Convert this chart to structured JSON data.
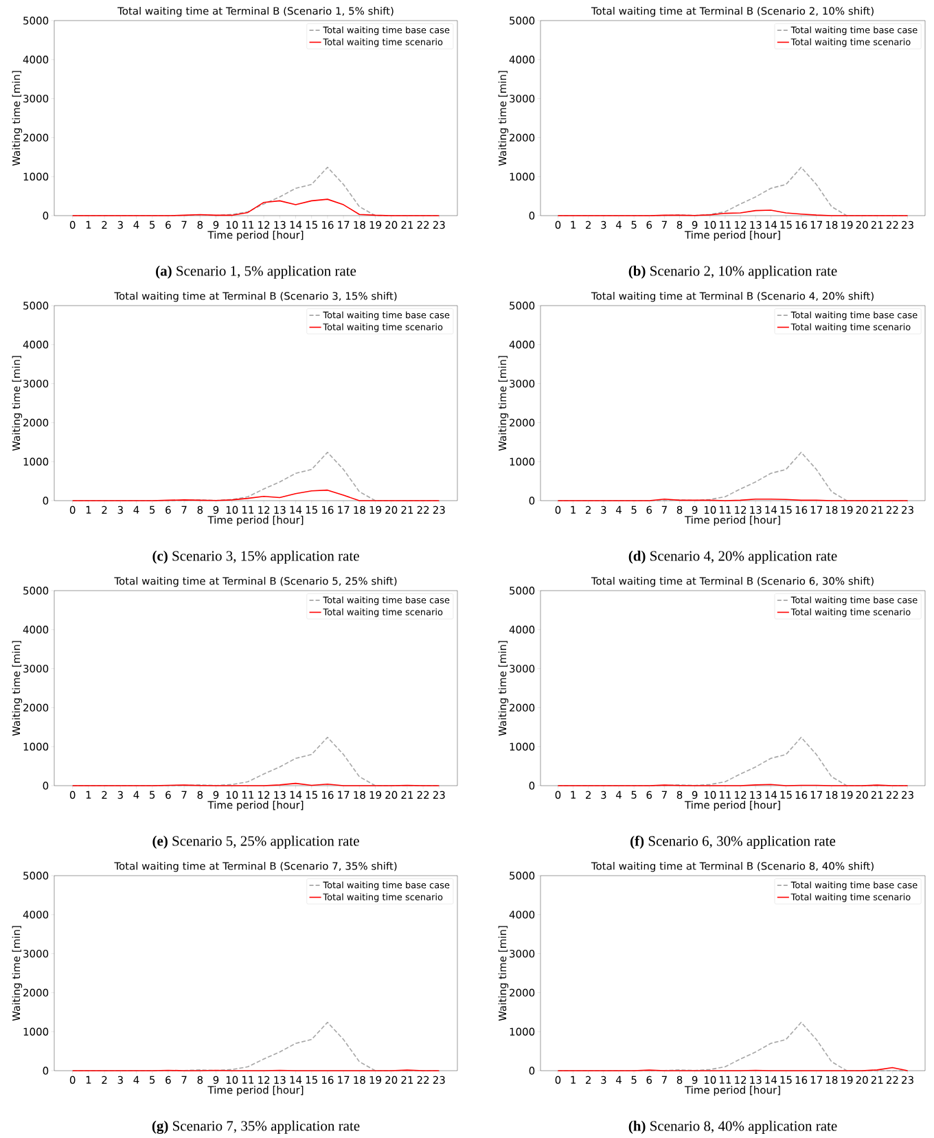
{
  "chart_data": [
    {
      "type": "line",
      "title": "Total waiting time at Terminal B (Scenario 1, 5% shift)",
      "xlabel": "Time period [hour]",
      "ylabel": "Waiting time [min]",
      "annotations": [
        "**(a)** Scenario 1, 5% application rate"
      ],
      "categories": [
        "0",
        "1",
        "2",
        "3",
        "4",
        "5",
        "6",
        "7",
        "8",
        "9",
        "10",
        "11",
        "12",
        "13",
        "14",
        "15",
        "16",
        "17",
        "18",
        "19",
        "20",
        "21",
        "22",
        "23"
      ],
      "ylim": [
        0,
        5000
      ],
      "yticks": [
        0,
        1000,
        2000,
        3000,
        4000,
        5000
      ],
      "legend": "top right",
      "series": [
        {
          "name": "Total waiting time base case",
          "color": "#a6a6a6",
          "line_style": "dashed",
          "values": [
            0,
            0,
            0,
            0,
            0,
            0,
            0,
            5,
            20,
            5,
            30,
            100,
            300,
            480,
            700,
            800,
            1240,
            800,
            230,
            0,
            0,
            0,
            0,
            0
          ]
        },
        {
          "name": "Total waiting time scenario",
          "color": "#ff0000",
          "line_style": "solid",
          "values": [
            0,
            0,
            0,
            0,
            0,
            0,
            0,
            10,
            25,
            10,
            10,
            80,
            340,
            380,
            280,
            380,
            420,
            280,
            30,
            10,
            0,
            0,
            0,
            0
          ]
        }
      ]
    },
    {
      "type": "line",
      "title": "Total waiting time at Terminal B (Scenario 2, 10% shift)",
      "xlabel": "Time period [hour]",
      "ylabel": "Waiting time [min]",
      "annotations": [
        "**(b)** Scenario 2, 10% application rate"
      ],
      "categories": [
        "0",
        "1",
        "2",
        "3",
        "4",
        "5",
        "6",
        "7",
        "8",
        "9",
        "10",
        "11",
        "12",
        "13",
        "14",
        "15",
        "16",
        "17",
        "18",
        "19",
        "20",
        "21",
        "22",
        "23"
      ],
      "ylim": [
        0,
        5000
      ],
      "yticks": [
        0,
        1000,
        2000,
        3000,
        4000,
        5000
      ],
      "legend": "top right",
      "series": [
        {
          "name": "Total waiting time base case",
          "color": "#a6a6a6",
          "line_style": "dashed",
          "values": [
            0,
            0,
            0,
            0,
            0,
            0,
            0,
            5,
            20,
            5,
            30,
            100,
            300,
            480,
            700,
            800,
            1240,
            800,
            230,
            0,
            0,
            0,
            0,
            0
          ]
        },
        {
          "name": "Total waiting time scenario",
          "color": "#ff0000",
          "line_style": "solid",
          "values": [
            0,
            0,
            0,
            0,
            0,
            0,
            0,
            10,
            10,
            5,
            20,
            60,
            70,
            130,
            140,
            70,
            40,
            15,
            0,
            0,
            0,
            0,
            0,
            0
          ]
        }
      ]
    },
    {
      "type": "line",
      "title": "Total waiting time at Terminal B (Scenario 3, 15% shift)",
      "xlabel": "Time period [hour]",
      "ylabel": "Waiting time [min]",
      "annotations": [
        "**(c)** Scenario 3, 15% application rate"
      ],
      "categories": [
        "0",
        "1",
        "2",
        "3",
        "4",
        "5",
        "6",
        "7",
        "8",
        "9",
        "10",
        "11",
        "12",
        "13",
        "14",
        "15",
        "16",
        "17",
        "18",
        "19",
        "20",
        "21",
        "22",
        "23"
      ],
      "ylim": [
        0,
        5000
      ],
      "yticks": [
        0,
        1000,
        2000,
        3000,
        4000,
        5000
      ],
      "legend": "top right",
      "series": [
        {
          "name": "Total waiting time base case",
          "color": "#a6a6a6",
          "line_style": "dashed",
          "values": [
            0,
            0,
            0,
            0,
            0,
            0,
            0,
            5,
            20,
            5,
            30,
            100,
            300,
            480,
            700,
            800,
            1240,
            800,
            230,
            0,
            0,
            0,
            0,
            0
          ]
        },
        {
          "name": "Total waiting time scenario",
          "color": "#ff0000",
          "line_style": "solid",
          "values": [
            0,
            0,
            0,
            0,
            0,
            0,
            10,
            20,
            10,
            5,
            20,
            60,
            110,
            80,
            180,
            250,
            270,
            140,
            0,
            0,
            0,
            0,
            0,
            0
          ]
        }
      ]
    },
    {
      "type": "line",
      "title": "Total waiting time at Terminal B (Scenario 4, 20% shift)",
      "xlabel": "Time period [hour]",
      "ylabel": "Waiting time [min]",
      "annotations": [
        "**(d)** Scenario 4, 20% application rate"
      ],
      "categories": [
        "0",
        "1",
        "2",
        "3",
        "4",
        "5",
        "6",
        "7",
        "8",
        "9",
        "10",
        "11",
        "12",
        "13",
        "14",
        "15",
        "16",
        "17",
        "18",
        "19",
        "20",
        "21",
        "22",
        "23"
      ],
      "ylim": [
        0,
        5000
      ],
      "yticks": [
        0,
        1000,
        2000,
        3000,
        4000,
        5000
      ],
      "legend": "top right",
      "series": [
        {
          "name": "Total waiting time base case",
          "color": "#a6a6a6",
          "line_style": "dashed",
          "values": [
            0,
            0,
            0,
            0,
            0,
            0,
            0,
            5,
            20,
            5,
            30,
            100,
            300,
            480,
            700,
            800,
            1240,
            800,
            230,
            0,
            0,
            0,
            0,
            0
          ]
        },
        {
          "name": "Total waiting time scenario",
          "color": "#ff0000",
          "line_style": "solid",
          "values": [
            0,
            0,
            0,
            0,
            0,
            0,
            0,
            40,
            10,
            10,
            10,
            0,
            10,
            40,
            40,
            30,
            10,
            10,
            0,
            0,
            0,
            0,
            0,
            0
          ]
        }
      ]
    },
    {
      "type": "line",
      "title": "Total waiting time at Terminal B (Scenario 5, 25% shift)",
      "xlabel": "Time period [hour]",
      "ylabel": "Waiting time [min]",
      "annotations": [
        "**(e)** Scenario 5, 25% application rate"
      ],
      "categories": [
        "0",
        "1",
        "2",
        "3",
        "4",
        "5",
        "6",
        "7",
        "8",
        "9",
        "10",
        "11",
        "12",
        "13",
        "14",
        "15",
        "16",
        "17",
        "18",
        "19",
        "20",
        "21",
        "22",
        "23"
      ],
      "ylim": [
        0,
        5000
      ],
      "yticks": [
        0,
        1000,
        2000,
        3000,
        4000,
        5000
      ],
      "legend": "top right",
      "series": [
        {
          "name": "Total waiting time base case",
          "color": "#a6a6a6",
          "line_style": "dashed",
          "values": [
            0,
            0,
            0,
            0,
            0,
            0,
            0,
            5,
            20,
            5,
            30,
            100,
            300,
            480,
            700,
            800,
            1240,
            800,
            230,
            0,
            0,
            0,
            0,
            0
          ]
        },
        {
          "name": "Total waiting time scenario",
          "color": "#ff0000",
          "line_style": "solid",
          "values": [
            0,
            0,
            0,
            0,
            0,
            0,
            10,
            15,
            5,
            0,
            0,
            0,
            0,
            20,
            60,
            10,
            40,
            0,
            0,
            0,
            0,
            10,
            0,
            0
          ]
        }
      ]
    },
    {
      "type": "line",
      "title": "Total waiting time at Terminal B (Scenario 6, 30% shift)",
      "xlabel": "Time period [hour]",
      "ylabel": "Waiting time [min]",
      "annotations": [
        "**(f)** Scenario 6, 30% application rate"
      ],
      "categories": [
        "0",
        "1",
        "2",
        "3",
        "4",
        "5",
        "6",
        "7",
        "8",
        "9",
        "10",
        "11",
        "12",
        "13",
        "14",
        "15",
        "16",
        "17",
        "18",
        "19",
        "20",
        "21",
        "22",
        "23"
      ],
      "ylim": [
        0,
        5000
      ],
      "yticks": [
        0,
        1000,
        2000,
        3000,
        4000,
        5000
      ],
      "legend": "top right",
      "series": [
        {
          "name": "Total waiting time base case",
          "color": "#a6a6a6",
          "line_style": "dashed",
          "values": [
            0,
            0,
            0,
            0,
            0,
            0,
            0,
            5,
            20,
            5,
            30,
            100,
            300,
            480,
            700,
            800,
            1240,
            800,
            230,
            0,
            0,
            0,
            0,
            0
          ]
        },
        {
          "name": "Total waiting time scenario",
          "color": "#ff0000",
          "line_style": "solid",
          "values": [
            0,
            0,
            0,
            0,
            0,
            0,
            0,
            15,
            5,
            0,
            0,
            0,
            0,
            20,
            30,
            0,
            10,
            10,
            0,
            0,
            0,
            15,
            0,
            0
          ]
        }
      ]
    },
    {
      "type": "line",
      "title": "Total waiting time at Terminal B (Scenario 7, 35% shift)",
      "xlabel": "Time period [hour]",
      "ylabel": "Waiting time [min]",
      "annotations": [
        "**(g)** Scenario 7, 35% application rate"
      ],
      "categories": [
        "0",
        "1",
        "2",
        "3",
        "4",
        "5",
        "6",
        "7",
        "8",
        "9",
        "10",
        "11",
        "12",
        "13",
        "14",
        "15",
        "16",
        "17",
        "18",
        "19",
        "20",
        "21",
        "22",
        "23"
      ],
      "ylim": [
        0,
        5000
      ],
      "yticks": [
        0,
        1000,
        2000,
        3000,
        4000,
        5000
      ],
      "legend": "top right",
      "series": [
        {
          "name": "Total waiting time base case",
          "color": "#a6a6a6",
          "line_style": "dashed",
          "values": [
            0,
            0,
            0,
            0,
            0,
            0,
            0,
            5,
            20,
            5,
            30,
            100,
            300,
            480,
            700,
            800,
            1240,
            800,
            230,
            0,
            0,
            0,
            0,
            0
          ]
        },
        {
          "name": "Total waiting time scenario",
          "color": "#ff0000",
          "line_style": "solid",
          "values": [
            0,
            0,
            0,
            0,
            0,
            0,
            10,
            0,
            0,
            10,
            0,
            0,
            0,
            10,
            0,
            0,
            0,
            0,
            0,
            0,
            0,
            15,
            0,
            0
          ]
        }
      ]
    },
    {
      "type": "line",
      "title": "Total waiting time at Terminal B (Scenario 8, 40% shift)",
      "xlabel": "Time period [hour]",
      "ylabel": "Waiting time [min]",
      "annotations": [
        "**(h)** Scenario 8, 40% application rate"
      ],
      "categories": [
        "0",
        "1",
        "2",
        "3",
        "4",
        "5",
        "6",
        "7",
        "8",
        "9",
        "10",
        "11",
        "12",
        "13",
        "14",
        "15",
        "16",
        "17",
        "18",
        "19",
        "20",
        "21",
        "22",
        "23"
      ],
      "ylim": [
        0,
        5000
      ],
      "yticks": [
        0,
        1000,
        2000,
        3000,
        4000,
        5000
      ],
      "legend": "top right",
      "series": [
        {
          "name": "Total waiting time base case",
          "color": "#a6a6a6",
          "line_style": "dashed",
          "values": [
            0,
            0,
            0,
            0,
            0,
            0,
            0,
            5,
            20,
            5,
            30,
            100,
            300,
            480,
            700,
            800,
            1240,
            800,
            230,
            0,
            0,
            0,
            0,
            0
          ]
        },
        {
          "name": "Total waiting time scenario",
          "color": "#ff0000",
          "line_style": "solid",
          "values": [
            0,
            0,
            0,
            0,
            0,
            0,
            15,
            0,
            0,
            0,
            0,
            0,
            0,
            10,
            0,
            0,
            0,
            0,
            0,
            0,
            0,
            20,
            80,
            0
          ]
        }
      ]
    }
  ]
}
